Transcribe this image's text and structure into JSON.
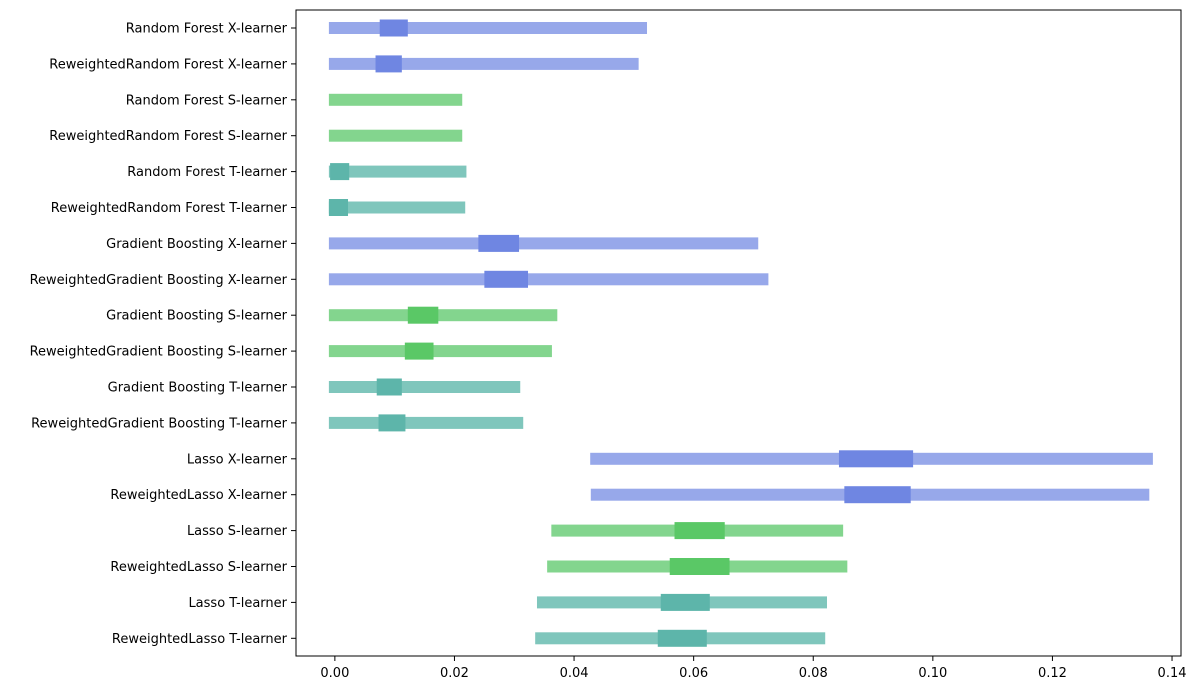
{
  "chart_data": {
    "type": "range-interval",
    "title": "",
    "xlabel": "",
    "ylabel": "",
    "xlim": [
      -0.0065,
      0.1415
    ],
    "xticks": [
      0.0,
      0.02,
      0.04,
      0.06,
      0.08,
      0.1,
      0.12,
      0.14
    ],
    "xtick_labels": [
      "0.00",
      "0.02",
      "0.04",
      "0.06",
      "0.08",
      "0.10",
      "0.12",
      "0.14"
    ],
    "grid": false,
    "learner_colors": {
      "X-learner": {
        "range": "#97a8ea",
        "box": "#6f86e2"
      },
      "S-learner": {
        "range": "#83d58e",
        "box": "#5ac866"
      },
      "T-learner": {
        "range": "#7fc6bc",
        "box": "#5db5aa"
      }
    },
    "rows": [
      {
        "label": "Random Forest X-learner",
        "learner": "X-learner",
        "low": -0.001,
        "high": 0.0522,
        "box_low": 0.0075,
        "box_high": 0.0122
      },
      {
        "label": "ReweightedRandom Forest X-learner",
        "learner": "X-learner",
        "low": -0.001,
        "high": 0.0508,
        "box_low": 0.0068,
        "box_high": 0.0112
      },
      {
        "label": "Random Forest S-learner",
        "learner": "S-learner",
        "low": -0.001,
        "high": 0.0213,
        "box_low": null,
        "box_high": null
      },
      {
        "label": "ReweightedRandom Forest S-learner",
        "learner": "S-learner",
        "low": -0.001,
        "high": 0.0213,
        "box_low": null,
        "box_high": null
      },
      {
        "label": "Random Forest T-learner",
        "learner": "T-learner",
        "low": -0.001,
        "high": 0.022,
        "box_low": -0.0008,
        "box_high": 0.0024
      },
      {
        "label": "ReweightedRandom Forest T-learner",
        "learner": "T-learner",
        "low": -0.001,
        "high": 0.0218,
        "box_low": -0.001,
        "box_high": 0.0022
      },
      {
        "label": "Gradient Boosting X-learner",
        "learner": "X-learner",
        "low": -0.001,
        "high": 0.0708,
        "box_low": 0.024,
        "box_high": 0.0308
      },
      {
        "label": "ReweightedGradient Boosting X-learner",
        "learner": "X-learner",
        "low": -0.001,
        "high": 0.0725,
        "box_low": 0.025,
        "box_high": 0.0323
      },
      {
        "label": "Gradient Boosting S-learner",
        "learner": "S-learner",
        "low": -0.001,
        "high": 0.0372,
        "box_low": 0.0122,
        "box_high": 0.0173
      },
      {
        "label": "ReweightedGradient Boosting S-learner",
        "learner": "S-learner",
        "low": -0.001,
        "high": 0.0363,
        "box_low": 0.0117,
        "box_high": 0.0165
      },
      {
        "label": "Gradient Boosting T-learner",
        "learner": "T-learner",
        "low": -0.001,
        "high": 0.031,
        "box_low": 0.007,
        "box_high": 0.0112
      },
      {
        "label": "ReweightedGradient Boosting T-learner",
        "learner": "T-learner",
        "low": -0.001,
        "high": 0.0315,
        "box_low": 0.0073,
        "box_high": 0.0118
      },
      {
        "label": "Lasso X-learner",
        "learner": "X-learner",
        "low": 0.0427,
        "high": 0.1368,
        "box_low": 0.0843,
        "box_high": 0.0967
      },
      {
        "label": "ReweightedLasso X-learner",
        "learner": "X-learner",
        "low": 0.0428,
        "high": 0.1362,
        "box_low": 0.0852,
        "box_high": 0.0963
      },
      {
        "label": "Lasso S-learner",
        "learner": "S-learner",
        "low": 0.0362,
        "high": 0.085,
        "box_low": 0.0568,
        "box_high": 0.0652
      },
      {
        "label": "ReweightedLasso S-learner",
        "learner": "S-learner",
        "low": 0.0355,
        "high": 0.0857,
        "box_low": 0.056,
        "box_high": 0.066
      },
      {
        "label": "Lasso T-learner",
        "learner": "T-learner",
        "low": 0.0338,
        "high": 0.0823,
        "box_low": 0.0545,
        "box_high": 0.0627
      },
      {
        "label": "ReweightedLasso T-learner",
        "learner": "T-learner",
        "low": 0.0335,
        "high": 0.082,
        "box_low": 0.054,
        "box_high": 0.0622
      }
    ]
  }
}
